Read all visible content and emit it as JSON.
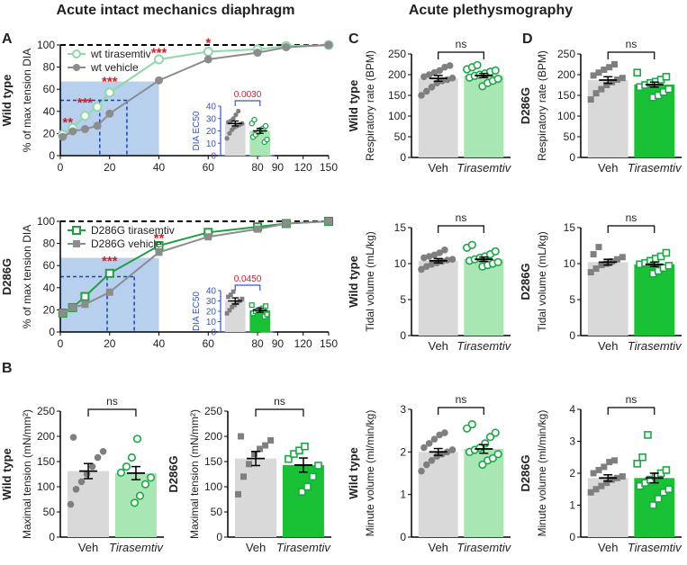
{
  "colors": {
    "wt_tir": "#8fd9a8",
    "wt_veh": "#8c8c8c",
    "d_tir": "#1f9f3f",
    "d_veh": "#8c8c8c",
    "shade": "#a9c8ea",
    "guide": "#1f3fbf",
    "star": "#e5151b",
    "inset": "#3556c4",
    "bar_veh": "#d9d9d9",
    "bar_wt_tir": "#a8e6b4",
    "bar_d_tir": "#19c234",
    "pt_veh": "#7f7f7f",
    "pt_tir": "#1aa845"
  },
  "chart_data": [
    {
      "id": "A_wt",
      "type": "line",
      "panel": "A",
      "row_label": "Wild type",
      "title": "Acute intact mechanics diaphragm",
      "ylabel": "% of max tension DIA",
      "xlim": [
        0,
        150
      ],
      "ylim": [
        0,
        100
      ],
      "x_ticks": [
        0,
        20,
        40,
        60,
        80,
        90,
        120,
        150
      ],
      "y_ticks": [
        0,
        20,
        40,
        60,
        80,
        100
      ],
      "series": [
        {
          "name": "wt tirasemtiv",
          "x": [
            1,
            5,
            10,
            15,
            20,
            40,
            60,
            80,
            100,
            150
          ],
          "values": [
            19,
            25,
            36,
            44,
            57,
            87,
            94,
            96,
            99,
            100
          ]
        },
        {
          "name": "wt vehicle",
          "x": [
            1,
            5,
            10,
            15,
            20,
            40,
            60,
            80,
            100,
            150
          ],
          "values": [
            17,
            22,
            24,
            27,
            38,
            68,
            87,
            93,
            98,
            100
          ]
        }
      ],
      "annotations": [
        {
          "text": "**",
          "x": 3,
          "y": 26
        },
        {
          "text": "***",
          "x": 10,
          "y": 44
        },
        {
          "text": "***",
          "x": 20,
          "y": 63
        },
        {
          "text": "***",
          "x": 40,
          "y": 89
        },
        {
          "text": "*",
          "x": 60,
          "y": 98
        }
      ],
      "shaded": {
        "x": [
          0,
          40
        ],
        "y": [
          0,
          67
        ]
      },
      "ec50_lines": {
        "y": 50,
        "x": [
          16,
          27
        ]
      },
      "inset": {
        "ylabel": "DIA EC50",
        "ylim": [
          0,
          40
        ],
        "y_ticks": [
          0,
          10,
          20,
          30,
          40
        ],
        "p_value": "0.0030",
        "groups": [
          {
            "name": "Veh",
            "mean": 26,
            "sem": 2,
            "points": [
              14,
              18,
              21,
              23,
              24,
              25,
              26,
              27,
              28,
              30,
              33,
              36
            ]
          },
          {
            "name": "Tirasemtiv",
            "mean": 20,
            "sem": 2,
            "points": [
              11,
              13,
              15,
              17,
              19,
              21,
              22,
              24,
              26,
              29
            ]
          }
        ]
      }
    },
    {
      "id": "A_d",
      "type": "line",
      "panel": "A",
      "row_label": "D286G",
      "ylabel": "% of max tension DIA",
      "xlim": [
        0,
        150
      ],
      "ylim": [
        0,
        100
      ],
      "x_ticks": [
        0,
        20,
        40,
        60,
        80,
        90,
        120,
        150
      ],
      "y_ticks": [
        0,
        20,
        40,
        60,
        80,
        100
      ],
      "series": [
        {
          "name": "D286G tirasemtiv",
          "x": [
            1,
            5,
            10,
            20,
            40,
            60,
            80,
            100,
            150
          ],
          "values": [
            17,
            22,
            32,
            53,
            78,
            90,
            95,
            98,
            100
          ]
        },
        {
          "name": "D286G vehicle",
          "x": [
            1,
            5,
            10,
            20,
            40,
            60,
            80,
            100,
            150
          ],
          "values": [
            17,
            22,
            25,
            36,
            72,
            86,
            93,
            98,
            100
          ]
        }
      ],
      "annotations": [
        {
          "text": "***",
          "x": 20,
          "y": 60
        },
        {
          "text": "**",
          "x": 40,
          "y": 81
        }
      ],
      "shaded": {
        "x": [
          0,
          40
        ],
        "y": [
          0,
          67
        ]
      },
      "ec50_lines": {
        "y": 50,
        "x": [
          19,
          30
        ]
      },
      "inset": {
        "ylabel": "DIA EC50",
        "ylim": [
          0,
          40
        ],
        "y_ticks": [
          0,
          10,
          20,
          30,
          40
        ],
        "p_value": "0.0450",
        "groups": [
          {
            "name": "Veh",
            "mean": 30,
            "sem": 3,
            "points": [
              18,
              21,
              24,
              26,
              28,
              30,
              32,
              34,
              36,
              39
            ]
          },
          {
            "name": "Tirasemtiv",
            "mean": 21,
            "sem": 2,
            "points": [
              15,
              17,
              18,
              20,
              21,
              22,
              23,
              25,
              26
            ]
          }
        ]
      }
    },
    {
      "id": "B_wt",
      "type": "bar",
      "panel": "B",
      "row_label": "Wild type",
      "ylabel": "Maximal tension (mN/mm²)",
      "categories": [
        "Veh",
        "Tirasemtiv"
      ],
      "ylim": [
        0,
        250
      ],
      "y_ticks": [
        0,
        50,
        100,
        150,
        200,
        250
      ],
      "sig": "ns",
      "values": [
        131,
        127
      ],
      "sem": [
        15,
        13
      ],
      "points": [
        [
          65,
          95,
          110,
          125,
          140,
          158,
          170,
          198
        ],
        [
          68,
          82,
          105,
          118,
          128,
          140,
          158,
          195
        ]
      ]
    },
    {
      "id": "B_d",
      "type": "bar",
      "panel": "B",
      "row_label": "D286G",
      "ylabel": "Maximal tension (mN/mm²)",
      "categories": [
        "Veh",
        "Tirasemtiv"
      ],
      "ylim": [
        0,
        250
      ],
      "y_ticks": [
        0,
        50,
        100,
        150,
        200,
        250
      ],
      "sig": "ns",
      "values": [
        156,
        143
      ],
      "sem": [
        14,
        14
      ],
      "points": [
        [
          85,
          120,
          145,
          165,
          175,
          182,
          192,
          200
        ],
        [
          90,
          100,
          120,
          142,
          155,
          165,
          172,
          180
        ]
      ]
    },
    {
      "id": "C_rr",
      "type": "bar",
      "panel": "C",
      "row_label": "Wild type",
      "title": "Acute plethysmography",
      "ylabel": "Respiratory rate (BPM)",
      "categories": [
        "Veh",
        "Tirasemtiv"
      ],
      "ylim": [
        0,
        250
      ],
      "y_ticks": [
        0,
        50,
        100,
        150,
        200,
        250
      ],
      "sig": "ns",
      "values": [
        191,
        198
      ],
      "sem": [
        7,
        5
      ],
      "points": [
        [
          150,
          160,
          170,
          180,
          185,
          188,
          192,
          195,
          200,
          205,
          210,
          218,
          222
        ],
        [
          172,
          180,
          185,
          190,
          193,
          197,
          200,
          203,
          207,
          210,
          213,
          218,
          223
        ]
      ]
    },
    {
      "id": "C_tv",
      "type": "bar",
      "panel": "C",
      "row_label": "Wild type",
      "ylabel": "Tidal volume (mL/kg)",
      "categories": [
        "Veh",
        "Tirasemtiv"
      ],
      "ylim": [
        0,
        15
      ],
      "y_ticks": [
        0,
        5,
        10,
        15
      ],
      "sig": "ns",
      "values": [
        10.4,
        10.6
      ],
      "sem": [
        0.3,
        0.3
      ],
      "points": [
        [
          9.2,
          9.6,
          9.9,
          10.1,
          10.3,
          10.5,
          10.6,
          10.8,
          11.0,
          11.2,
          11.5,
          11.9
        ],
        [
          9.6,
          9.8,
          10.0,
          10.2,
          10.4,
          10.6,
          10.8,
          11.0,
          11.3,
          11.7,
          12.2,
          12.6
        ]
      ]
    },
    {
      "id": "C_mv",
      "type": "bar",
      "panel": "C",
      "row_label": "Wild type",
      "ylabel": "Minute volume (ml/min/kg)",
      "categories": [
        "Veh",
        "Tirasemtiv"
      ],
      "ylim": [
        0,
        3
      ],
      "y_ticks": [
        0,
        1,
        2,
        3
      ],
      "sig": "ns",
      "values": [
        2.0,
        2.07
      ],
      "sem": [
        0.08,
        0.1
      ],
      "points": [
        [
          1.55,
          1.7,
          1.8,
          1.9,
          1.95,
          2.0,
          2.05,
          2.1,
          2.2,
          2.3,
          2.4,
          2.45
        ],
        [
          1.7,
          1.8,
          1.85,
          1.95,
          2.0,
          2.05,
          2.1,
          2.2,
          2.35,
          2.45,
          2.55,
          2.65
        ]
      ]
    },
    {
      "id": "D_rr",
      "type": "bar",
      "panel": "D",
      "row_label": "D286G",
      "ylabel": "Respiratory rate (BPM)",
      "categories": [
        "Veh",
        "Tirasemtiv"
      ],
      "ylim": [
        0,
        250
      ],
      "y_ticks": [
        0,
        50,
        100,
        150,
        200,
        250
      ],
      "sig": "ns",
      "values": [
        187,
        176
      ],
      "sem": [
        8,
        6
      ],
      "points": [
        [
          140,
          155,
          165,
          175,
          182,
          188,
          192,
          198,
          205,
          212,
          218,
          225
        ],
        [
          145,
          150,
          158,
          165,
          170,
          175,
          180,
          183,
          188,
          195,
          205
        ]
      ]
    },
    {
      "id": "D_tv",
      "type": "bar",
      "panel": "D",
      "row_label": "D286G",
      "ylabel": "Tidal volume (mL/kg)",
      "categories": [
        "Veh",
        "Tirasemtiv"
      ],
      "ylim": [
        0,
        15
      ],
      "y_ticks": [
        0,
        5,
        10,
        15
      ],
      "sig": "ns",
      "values": [
        10.2,
        9.9
      ],
      "sem": [
        0.4,
        0.3
      ],
      "points": [
        [
          8.8,
          9.3,
          9.8,
          10.0,
          10.3,
          10.6,
          10.9,
          11.3,
          12.3
        ],
        [
          8.6,
          9.0,
          9.4,
          9.7,
          9.9,
          10.1,
          10.4,
          10.7,
          11.0,
          11.5
        ]
      ]
    },
    {
      "id": "D_mv",
      "type": "bar",
      "panel": "D",
      "row_label": "D286G",
      "ylabel": "Minute volume (ml/min/kg)",
      "categories": [
        "Veh",
        "Tirasemtiv"
      ],
      "ylim": [
        0,
        4
      ],
      "y_ticks": [
        0,
        1,
        2,
        3,
        4
      ],
      "sig": "ns",
      "values": [
        1.85,
        1.85
      ],
      "sem": [
        0.1,
        0.15
      ],
      "points": [
        [
          1.4,
          1.5,
          1.6,
          1.7,
          1.8,
          1.85,
          1.9,
          2.0,
          2.1,
          2.2,
          2.35,
          2.4
        ],
        [
          1.0,
          1.2,
          1.4,
          1.5,
          1.6,
          1.7,
          1.8,
          1.9,
          2.0,
          2.1,
          2.3,
          2.5,
          3.2
        ]
      ]
    }
  ]
}
